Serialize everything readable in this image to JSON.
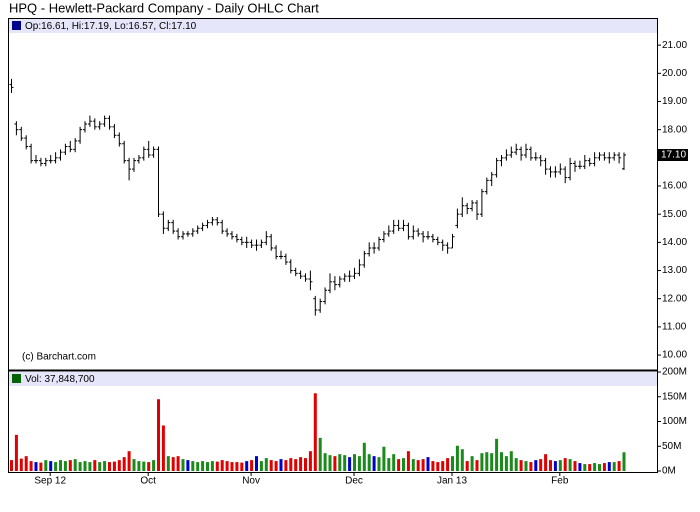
{
  "chart_data": {
    "type": "ohlc",
    "title": "HPQ - Hewlett-Packard Company - Daily OHLC Chart",
    "price_header": "Op:16.61, Hi:17.19, Lo:16.57, Cl:17.10",
    "volume_header": "Vol: 37,848,700",
    "watermark": "(c) Barchart.com",
    "last_price_label": "17.10",
    "color": "#000000",
    "up_color": "#1a8a1a",
    "down_color": "#e00000",
    "flat_color": "#0000cc",
    "grid": false,
    "categories": [
      null,
      null,
      null,
      null,
      null,
      null,
      null,
      null,
      "Sep 12",
      null,
      null,
      null,
      null,
      null,
      null,
      null,
      null,
      null,
      null,
      null,
      null,
      null,
      null,
      null,
      null,
      null,
      null,
      null,
      "Oct",
      null,
      null,
      null,
      null,
      null,
      null,
      null,
      null,
      null,
      null,
      null,
      null,
      null,
      null,
      null,
      null,
      null,
      null,
      null,
      null,
      "Nov",
      null,
      null,
      null,
      null,
      null,
      null,
      null,
      null,
      null,
      null,
      null,
      null,
      null,
      null,
      null,
      null,
      null,
      null,
      null,
      null,
      "Dec",
      null,
      null,
      null,
      null,
      null,
      null,
      null,
      null,
      null,
      null,
      null,
      null,
      null,
      null,
      null,
      null,
      null,
      null,
      null,
      "Jan 13",
      null,
      null,
      null,
      null,
      null,
      null,
      null,
      null,
      null,
      null,
      null,
      null,
      null,
      null,
      null,
      null,
      null,
      null,
      null,
      null,
      null,
      "Feb",
      null,
      null,
      null,
      null,
      null,
      null,
      null,
      null,
      null,
      null,
      null,
      null,
      null
    ],
    "open": [
      19.6,
      18.2,
      18.0,
      17.7,
      17.4,
      16.9,
      16.9,
      16.8,
      16.9,
      16.9,
      17.0,
      17.2,
      17.4,
      17.3,
      17.6,
      18.0,
      18.2,
      18.3,
      18.1,
      18.2,
      18.4,
      18.1,
      17.8,
      17.5,
      16.9,
      16.6,
      16.9,
      17.0,
      17.3,
      17.1,
      17.3,
      15.0,
      14.5,
      14.7,
      14.4,
      14.2,
      14.3,
      14.3,
      14.4,
      14.5,
      14.6,
      14.7,
      14.8,
      14.7,
      14.4,
      14.3,
      14.2,
      14.1,
      14.0,
      14.0,
      13.9,
      13.9,
      14.0,
      14.2,
      13.8,
      13.5,
      13.5,
      13.3,
      13.0,
      12.9,
      12.8,
      12.7,
      12.0,
      11.6,
      11.9,
      12.3,
      12.6,
      12.5,
      12.7,
      12.8,
      12.8,
      12.9,
      13.2,
      13.6,
      13.8,
      13.8,
      14.1,
      14.3,
      14.4,
      14.6,
      14.5,
      14.6,
      14.2,
      14.4,
      14.3,
      14.2,
      14.2,
      14.1,
      14.0,
      13.9,
      13.8,
      14.6,
      15.0,
      15.3,
      15.2,
      15.4,
      15.0,
      15.8,
      16.2,
      16.4,
      16.9,
      17.0,
      17.1,
      17.2,
      17.3,
      17.1,
      17.3,
      17.0,
      17.0,
      16.9,
      16.6,
      16.5,
      16.5,
      16.6,
      16.3,
      16.8,
      16.7,
      16.7,
      16.9,
      16.8,
      17.0,
      17.1,
      17.0,
      17.0,
      17.1,
      16.61
    ],
    "high": [
      19.8,
      18.3,
      18.1,
      17.8,
      17.5,
      17.1,
      17.0,
      17.0,
      17.1,
      17.2,
      17.3,
      17.5,
      17.6,
      17.7,
      18.1,
      18.3,
      18.5,
      18.4,
      18.3,
      18.5,
      18.5,
      18.2,
      17.9,
      17.6,
      17.0,
      17.0,
      17.1,
      17.4,
      17.6,
      17.4,
      17.4,
      15.1,
      14.8,
      14.8,
      14.5,
      14.4,
      14.4,
      14.5,
      14.6,
      14.7,
      14.8,
      14.9,
      14.9,
      14.8,
      14.5,
      14.4,
      14.3,
      14.2,
      14.2,
      14.1,
      14.1,
      14.1,
      14.4,
      14.3,
      13.9,
      13.7,
      13.6,
      13.4,
      13.1,
      13.0,
      12.9,
      13.0,
      12.1,
      12.0,
      12.4,
      12.9,
      12.8,
      12.8,
      12.9,
      13.0,
      13.1,
      13.4,
      13.7,
      14.0,
      14.0,
      14.2,
      14.4,
      14.6,
      14.8,
      14.8,
      14.8,
      14.7,
      14.6,
      14.5,
      14.4,
      14.4,
      14.3,
      14.2,
      14.1,
      14.0,
      14.3,
      15.2,
      15.6,
      15.4,
      15.5,
      15.5,
      15.9,
      16.3,
      16.5,
      17.0,
      17.1,
      17.3,
      17.4,
      17.5,
      17.4,
      17.5,
      17.4,
      17.2,
      17.1,
      17.0,
      16.7,
      16.7,
      16.8,
      16.7,
      17.0,
      16.9,
      16.9,
      17.1,
      17.0,
      17.2,
      17.2,
      17.2,
      17.2,
      17.2,
      17.2,
      17.19
    ],
    "low": [
      19.3,
      17.8,
      17.6,
      17.3,
      16.8,
      16.8,
      16.7,
      16.7,
      16.8,
      16.8,
      16.9,
      17.1,
      17.2,
      17.2,
      17.5,
      17.9,
      18.1,
      18.0,
      18.0,
      18.1,
      18.0,
      17.7,
      17.4,
      16.8,
      16.2,
      16.5,
      16.8,
      16.9,
      17.0,
      17.0,
      14.9,
      14.3,
      14.4,
      14.3,
      14.1,
      14.1,
      14.2,
      14.2,
      14.3,
      14.4,
      14.5,
      14.6,
      14.6,
      14.3,
      14.2,
      14.1,
      14.0,
      13.9,
      13.8,
      13.8,
      13.7,
      13.8,
      13.9,
      13.7,
      13.4,
      13.4,
      13.2,
      12.9,
      12.8,
      12.7,
      12.6,
      12.3,
      11.4,
      11.5,
      11.8,
      12.2,
      12.3,
      12.4,
      12.6,
      12.6,
      12.7,
      12.8,
      13.1,
      13.5,
      13.6,
      13.7,
      14.0,
      14.2,
      14.3,
      14.4,
      14.4,
      14.1,
      14.1,
      14.2,
      14.0,
      14.1,
      14.0,
      13.9,
      13.7,
      13.6,
      13.8,
      14.5,
      14.9,
      15.0,
      15.1,
      14.8,
      14.9,
      15.7,
      16.0,
      16.3,
      16.7,
      16.9,
      17.0,
      17.1,
      16.9,
      17.0,
      16.9,
      16.9,
      16.7,
      16.4,
      16.3,
      16.3,
      16.4,
      16.1,
      16.2,
      16.5,
      16.6,
      16.6,
      16.7,
      16.7,
      16.9,
      16.9,
      16.8,
      16.9,
      16.8,
      16.57
    ],
    "close": [
      19.5,
      18.0,
      17.7,
      17.4,
      16.9,
      16.9,
      16.8,
      16.9,
      16.9,
      17.0,
      17.2,
      17.4,
      17.3,
      17.6,
      18.0,
      18.2,
      18.3,
      18.1,
      18.2,
      18.4,
      18.1,
      17.8,
      17.5,
      16.9,
      16.6,
      16.9,
      17.0,
      17.3,
      17.1,
      17.3,
      15.0,
      14.5,
      14.7,
      14.4,
      14.2,
      14.3,
      14.3,
      14.4,
      14.5,
      14.6,
      14.7,
      14.8,
      14.7,
      14.4,
      14.3,
      14.2,
      14.1,
      14.0,
      14.0,
      13.9,
      13.9,
      14.0,
      14.2,
      13.8,
      13.5,
      13.5,
      13.3,
      13.0,
      12.9,
      12.8,
      12.7,
      12.6,
      11.6,
      11.9,
      12.3,
      12.6,
      12.5,
      12.7,
      12.8,
      12.8,
      12.9,
      13.2,
      13.6,
      13.8,
      13.8,
      14.1,
      14.3,
      14.4,
      14.6,
      14.5,
      14.6,
      14.2,
      14.4,
      14.3,
      14.2,
      14.2,
      14.1,
      14.0,
      13.9,
      13.8,
      14.2,
      15.0,
      15.3,
      15.2,
      15.4,
      15.0,
      15.8,
      16.2,
      16.4,
      16.9,
      17.0,
      17.1,
      17.2,
      17.3,
      17.1,
      17.3,
      17.0,
      17.0,
      16.9,
      16.6,
      16.5,
      16.5,
      16.6,
      16.3,
      16.8,
      16.7,
      16.7,
      16.9,
      16.8,
      17.0,
      17.1,
      17.0,
      17.0,
      17.1,
      17.0,
      17.1
    ],
    "volume": [
      22,
      73,
      25,
      30,
      20,
      18,
      17,
      22,
      20,
      18,
      22,
      20,
      22,
      24,
      18,
      20,
      18,
      22,
      18,
      20,
      18,
      19,
      22,
      28,
      40,
      24,
      20,
      19,
      18,
      22,
      145,
      92,
      30,
      28,
      30,
      24,
      22,
      20,
      18,
      20,
      18,
      20,
      19,
      22,
      20,
      18,
      18,
      17,
      20,
      22,
      30,
      20,
      26,
      22,
      20,
      24,
      22,
      26,
      24,
      28,
      26,
      40,
      157,
      67,
      36,
      32,
      30,
      34,
      32,
      28,
      34,
      30,
      57,
      34,
      30,
      28,
      49,
      26,
      34,
      24,
      26,
      40,
      24,
      22,
      24,
      28,
      20,
      18,
      20,
      26,
      30,
      51,
      44,
      20,
      30,
      22,
      36,
      38,
      36,
      65,
      38,
      30,
      40,
      26,
      22,
      20,
      18,
      22,
      24,
      34,
      22,
      20,
      22,
      26,
      24,
      20,
      16,
      14,
      14,
      16,
      14,
      16,
      18,
      18,
      20,
      37.85
    ],
    "ylim": [
      9.47,
      21.43
    ],
    "yticks": [
      {
        "value": 10,
        "label": "10.00"
      },
      {
        "value": 11,
        "label": "11.00"
      },
      {
        "value": 12,
        "label": "12.00"
      },
      {
        "value": 13,
        "label": "13.00"
      },
      {
        "value": 14,
        "label": "14.00"
      },
      {
        "value": 15,
        "label": "15.00"
      },
      {
        "value": 16,
        "label": "16.00"
      },
      {
        "value": 17,
        "label": "17.00"
      },
      {
        "value": 18,
        "label": "18.00"
      },
      {
        "value": 19,
        "label": "19.00"
      },
      {
        "value": 20,
        "label": "20.00"
      },
      {
        "value": 21,
        "label": "21.00"
      }
    ],
    "y2lim": [
      0,
      200
    ],
    "y2ticks": [
      {
        "value": 0,
        "label": "0M"
      },
      {
        "value": 50,
        "label": "50M"
      },
      {
        "value": 100,
        "label": "100M"
      },
      {
        "value": 150,
        "label": "150M"
      },
      {
        "value": 200,
        "label": "200M"
      }
    ]
  }
}
